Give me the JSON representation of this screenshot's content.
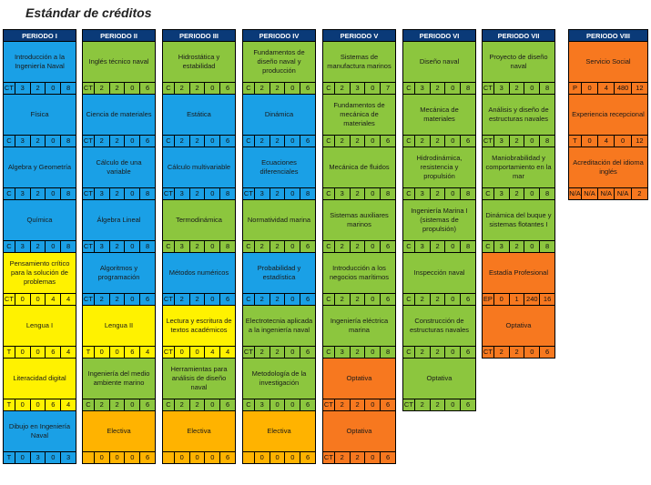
{
  "title": "Estándar de créditos",
  "colors": {
    "blue": "#1aa0e6",
    "green": "#8cc63e",
    "yellow": "#fff200",
    "orange": "#f7781f",
    "gold": "#ffb300",
    "header": "#0a3a78"
  },
  "periods": [
    {
      "header": "PERIODO I",
      "courses": [
        {
          "name": "Introducción a la Ingeniería Naval",
          "color": "blue",
          "codes": [
            "CT",
            "3",
            "2",
            "0",
            "8"
          ]
        },
        {
          "name": "Física",
          "color": "blue",
          "codes": [
            "C",
            "3",
            "2",
            "0",
            "8"
          ]
        },
        {
          "name": "Algebra y Geometría",
          "color": "blue",
          "codes": [
            "C",
            "3",
            "2",
            "0",
            "8"
          ]
        },
        {
          "name": "Química",
          "color": "blue",
          "codes": [
            "C",
            "3",
            "2",
            "0",
            "8"
          ]
        },
        {
          "name": "Pensamiento crítico para la solución de problemas",
          "color": "yellow",
          "codes": [
            "CT",
            "0",
            "0",
            "4",
            "4"
          ]
        },
        {
          "name": "Lengua I",
          "color": "yellow",
          "codes": [
            "T",
            "0",
            "0",
            "6",
            "4"
          ]
        },
        {
          "name": "Literacidad digital",
          "color": "yellow",
          "codes": [
            "T",
            "0",
            "0",
            "6",
            "4"
          ]
        },
        {
          "name": "Dibujo en Ingeniería Naval",
          "color": "blue",
          "codes": [
            "T",
            "0",
            "3",
            "0",
            "3"
          ]
        }
      ]
    },
    {
      "header": "PERIODO II",
      "courses": [
        {
          "name": "Inglés técnico naval",
          "color": "green",
          "codes": [
            "CT",
            "2",
            "2",
            "0",
            "6"
          ]
        },
        {
          "name": "Ciencia de materiales",
          "color": "blue",
          "codes": [
            "CT",
            "2",
            "2",
            "0",
            "6"
          ]
        },
        {
          "name": "Cálculo de una variable",
          "color": "blue",
          "codes": [
            "CT",
            "3",
            "2",
            "0",
            "8"
          ]
        },
        {
          "name": "Álgebra Lineal",
          "color": "blue",
          "codes": [
            "CT",
            "3",
            "2",
            "0",
            "8"
          ]
        },
        {
          "name": "Algoritmos y programación",
          "color": "blue",
          "codes": [
            "CT",
            "2",
            "2",
            "0",
            "6"
          ]
        },
        {
          "name": "Lengua II",
          "color": "yellow",
          "codes": [
            "T",
            "0",
            "0",
            "6",
            "4"
          ]
        },
        {
          "name": "Ingeniería del medio ambiente marino",
          "color": "green",
          "codes": [
            "C",
            "2",
            "2",
            "0",
            "6"
          ]
        },
        {
          "name": "Electiva",
          "color": "gold",
          "codes": [
            "",
            "0",
            "0",
            "0",
            "6"
          ]
        }
      ]
    },
    {
      "header": "PERIODO III",
      "courses": [
        {
          "name": "Hidrostática y estabilidad",
          "color": "green",
          "codes": [
            "C",
            "2",
            "2",
            "0",
            "6"
          ]
        },
        {
          "name": "Estática",
          "color": "blue",
          "codes": [
            "C",
            "2",
            "2",
            "0",
            "6"
          ]
        },
        {
          "name": "Cálculo multivariable",
          "color": "blue",
          "codes": [
            "CT",
            "3",
            "2",
            "0",
            "8"
          ]
        },
        {
          "name": "Termodinámica",
          "color": "green",
          "codes": [
            "C",
            "3",
            "2",
            "0",
            "8"
          ]
        },
        {
          "name": "Métodos numéricos",
          "color": "blue",
          "codes": [
            "CT",
            "2",
            "2",
            "0",
            "6"
          ]
        },
        {
          "name": "Lectura y escritura de textos académicos",
          "color": "yellow",
          "codes": [
            "CT",
            "0",
            "0",
            "4",
            "4"
          ]
        },
        {
          "name": "Herramientas para análisis de diseño naval",
          "color": "green",
          "codes": [
            "C",
            "2",
            "2",
            "0",
            "6"
          ]
        },
        {
          "name": "Electiva",
          "color": "gold",
          "codes": [
            "",
            "0",
            "0",
            "0",
            "6"
          ]
        }
      ]
    },
    {
      "header": "PERIODO IV",
      "courses": [
        {
          "name": "Fundamentos de diseño naval y producción",
          "color": "green",
          "codes": [
            "C",
            "2",
            "2",
            "0",
            "6"
          ]
        },
        {
          "name": "Dinámica",
          "color": "blue",
          "codes": [
            "C",
            "2",
            "2",
            "0",
            "6"
          ]
        },
        {
          "name": "Ecuaciones diferenciales",
          "color": "blue",
          "codes": [
            "CT",
            "3",
            "2",
            "0",
            "8"
          ]
        },
        {
          "name": "Normatividad marina",
          "color": "green",
          "codes": [
            "C",
            "2",
            "2",
            "0",
            "6"
          ]
        },
        {
          "name": "Probabilidad y estadística",
          "color": "blue",
          "codes": [
            "C",
            "2",
            "2",
            "0",
            "6"
          ]
        },
        {
          "name": "Electrotecnia aplicada a la ingeniería naval",
          "color": "green",
          "codes": [
            "CT",
            "2",
            "2",
            "0",
            "6"
          ]
        },
        {
          "name": "Metodología de la investigación",
          "color": "green",
          "codes": [
            "C",
            "3",
            "0",
            "0",
            "6"
          ]
        },
        {
          "name": "Electiva",
          "color": "gold",
          "codes": [
            "",
            "0",
            "0",
            "0",
            "6"
          ]
        }
      ]
    },
    {
      "header": "PERIODO V",
      "courses": [
        {
          "name": "Sistemas de manufactura marinos",
          "color": "green",
          "codes": [
            "C",
            "2",
            "3",
            "0",
            "7"
          ]
        },
        {
          "name": "Fundamentos de mecánica de materiales",
          "color": "green",
          "codes": [
            "C",
            "2",
            "2",
            "0",
            "6"
          ]
        },
        {
          "name": "Mecánica de fluidos",
          "color": "green",
          "codes": [
            "C",
            "3",
            "2",
            "0",
            "8"
          ]
        },
        {
          "name": "Sistemas auxiliares marinos",
          "color": "green",
          "codes": [
            "C",
            "2",
            "2",
            "0",
            "6"
          ]
        },
        {
          "name": "Introducción a los negocios marítimos",
          "color": "green",
          "codes": [
            "C",
            "2",
            "2",
            "0",
            "6"
          ]
        },
        {
          "name": "Ingeniería eléctrica marina",
          "color": "green",
          "codes": [
            "C",
            "3",
            "2",
            "0",
            "8"
          ]
        },
        {
          "name": "Optativa",
          "color": "orange",
          "codes": [
            "CT",
            "2",
            "2",
            "0",
            "6"
          ]
        },
        {
          "name": "Optativa",
          "color": "orange",
          "codes": [
            "CT",
            "2",
            "2",
            "0",
            "6"
          ]
        }
      ]
    },
    {
      "header": "PERIODO VI",
      "courses": [
        {
          "name": "Diseño naval",
          "color": "green",
          "codes": [
            "C",
            "3",
            "2",
            "0",
            "8"
          ]
        },
        {
          "name": "Mecánica de materiales",
          "color": "green",
          "codes": [
            "C",
            "2",
            "2",
            "0",
            "6"
          ]
        },
        {
          "name": "Hidrodinámica, resistencia y propulsión",
          "color": "green",
          "codes": [
            "C",
            "3",
            "2",
            "0",
            "8"
          ]
        },
        {
          "name": "Ingeniería Marina I (sistemas de propulsión)",
          "color": "green",
          "codes": [
            "C",
            "3",
            "2",
            "0",
            "8"
          ]
        },
        {
          "name": "Inspección naval",
          "color": "green",
          "codes": [
            "C",
            "2",
            "2",
            "0",
            "6"
          ]
        },
        {
          "name": "Construcción de estructuras navales",
          "color": "green",
          "codes": [
            "C",
            "2",
            "2",
            "0",
            "6"
          ]
        },
        {
          "name": "Optativa",
          "color": "green",
          "codes": [
            "CT",
            "2",
            "2",
            "0",
            "6"
          ]
        }
      ]
    },
    {
      "header": "PERIODO VII",
      "courses": [
        {
          "name": "Proyecto de diseño naval",
          "color": "green",
          "codes": [
            "CT",
            "3",
            "2",
            "0",
            "8"
          ]
        },
        {
          "name": "Análisis y diseño de estructuras navales",
          "color": "green",
          "codes": [
            "CT",
            "3",
            "2",
            "0",
            "8"
          ]
        },
        {
          "name": "Maniobrabilidad y comportamiento en la mar",
          "color": "green",
          "codes": [
            "C",
            "3",
            "2",
            "0",
            "8"
          ]
        },
        {
          "name": "Dinámica del buque y sistemas flotantes I",
          "color": "green",
          "codes": [
            "C",
            "3",
            "2",
            "0",
            "8"
          ]
        },
        {
          "name": "Estadía Profesional",
          "color": "orange",
          "codes": [
            "EP",
            "0",
            "1",
            "240",
            "16"
          ]
        },
        {
          "name": "Optativa",
          "color": "orange",
          "codes": [
            "CT",
            "2",
            "2",
            "0",
            "6"
          ]
        }
      ]
    },
    {
      "header": "PERIODO VIII",
      "courses": [
        {
          "name": "Servicio Social",
          "color": "orange",
          "codes": [
            "P",
            "0",
            "4",
            "480",
            "12"
          ]
        },
        {
          "name": "Experiencia recepcional",
          "color": "orange",
          "codes": [
            "T",
            "0",
            "4",
            "0",
            "12"
          ]
        },
        {
          "name": "Acreditación del idioma inglés",
          "color": "orange",
          "codes": [
            "N/A",
            "N/A",
            "N/A",
            "N/A",
            "2"
          ]
        }
      ]
    }
  ]
}
